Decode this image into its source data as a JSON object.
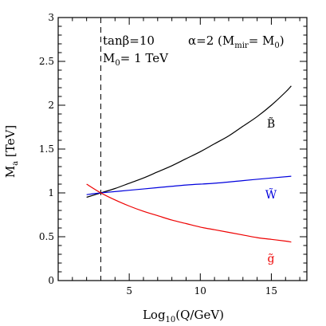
{
  "chart_data": {
    "type": "line",
    "title": "",
    "xlabel": {
      "base": "Log",
      "sub": "10",
      "rest": "(Q/GeV)"
    },
    "ylabel": {
      "base": "M",
      "sub": "a",
      "rest": " [TeV]"
    },
    "xlim": [
      0,
      17.5
    ],
    "ylim": [
      0,
      3
    ],
    "x_ticks": [
      {
        "value": 5,
        "label": "5"
      },
      {
        "value": 10,
        "label": "10"
      },
      {
        "value": 15,
        "label": "15"
      }
    ],
    "y_ticks": [
      {
        "value": 0,
        "label": "0"
      },
      {
        "value": 0.5,
        "label": "0.5"
      },
      {
        "value": 1,
        "label": "1"
      },
      {
        "value": 1.5,
        "label": "1.5"
      },
      {
        "value": 2,
        "label": "2"
      },
      {
        "value": 2.5,
        "label": "2.5"
      },
      {
        "value": 3,
        "label": "3"
      }
    ],
    "vertical_marker": {
      "x": 3.0,
      "style": "dashed"
    },
    "annotations": [
      {
        "key": "tanb",
        "text": "tanβ=10"
      },
      {
        "key": "alpha",
        "text": "α=2 (M",
        "sub": "mir",
        "rest": "= M",
        "sub2": "0",
        "rest2": ")"
      },
      {
        "key": "m0",
        "text": "M",
        "sub": "0",
        "rest": "= 1 TeV"
      }
    ],
    "series": [
      {
        "key": "bino",
        "label": "B̃",
        "color": "#000000",
        "x": [
          2,
          3,
          4,
          5,
          6,
          7,
          8,
          9,
          10,
          11,
          12,
          13,
          14,
          15,
          16,
          16.4
        ],
        "y": [
          0.95,
          1.0,
          1.05,
          1.11,
          1.17,
          1.24,
          1.31,
          1.39,
          1.47,
          1.56,
          1.65,
          1.76,
          1.87,
          2.0,
          2.15,
          2.22
        ]
      },
      {
        "key": "wino",
        "label": "W̃",
        "color": "#0000dd",
        "x": [
          2,
          3,
          5,
          7,
          9,
          11,
          13,
          15,
          16.4
        ],
        "y": [
          0.98,
          1.0,
          1.03,
          1.06,
          1.09,
          1.11,
          1.14,
          1.17,
          1.19
        ]
      },
      {
        "key": "gluino",
        "label": "g̃",
        "color": "#ee0000",
        "x": [
          2,
          3,
          4,
          5,
          6,
          7,
          8,
          9,
          10,
          11,
          12,
          13,
          14,
          15,
          16,
          16.4
        ],
        "y": [
          1.1,
          1.0,
          0.92,
          0.85,
          0.79,
          0.74,
          0.69,
          0.65,
          0.61,
          0.58,
          0.55,
          0.52,
          0.49,
          0.47,
          0.45,
          0.44
        ]
      }
    ]
  }
}
